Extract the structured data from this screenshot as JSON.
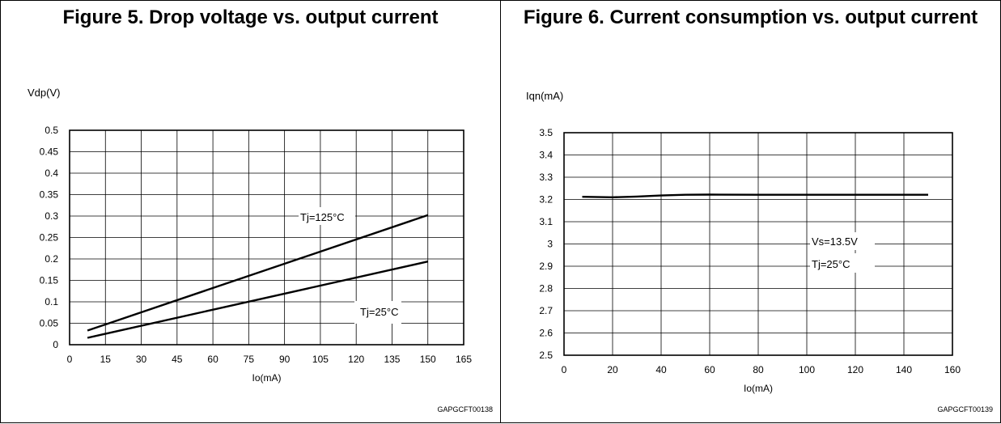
{
  "chart_data": [
    {
      "type": "line",
      "title": "Figure 5. Drop voltage vs. output current",
      "ylabel": "Vdp(V)",
      "xlabel": "Io(mA)",
      "xlim": [
        0,
        165
      ],
      "ylim": [
        0,
        0.5
      ],
      "xticks": [
        "0",
        "15",
        "30",
        "45",
        "60",
        "75",
        "90",
        "105",
        "120",
        "135",
        "150",
        "165"
      ],
      "yticks": [
        "0",
        "0.05",
        "0.1",
        "0.15",
        "0.2",
        "0.25",
        "0.3",
        "0.35",
        "0.4",
        "0.45",
        "0.5"
      ],
      "grid": true,
      "series": [
        {
          "name": "Tj=125°C",
          "x": [
            7.5,
            150
          ],
          "y": [
            0.033,
            0.302
          ]
        },
        {
          "name": "Tj=25°C",
          "x": [
            7.5,
            150
          ],
          "y": [
            0.016,
            0.194
          ]
        }
      ],
      "annotations": [
        "Tj=125°C",
        "Tj=25°C"
      ],
      "code": "GAPGCFT00138"
    },
    {
      "type": "line",
      "title": "Figure 6. Current consumption vs. output current",
      "ylabel": "Iqn(mA)",
      "xlabel": "Io(mA)",
      "xlim": [
        0,
        160
      ],
      "ylim": [
        2.5,
        3.5
      ],
      "xticks": [
        "0",
        "20",
        "40",
        "60",
        "80",
        "100",
        "120",
        "140",
        "160"
      ],
      "yticks": [
        "2.5",
        "2.6",
        "2.7",
        "2.8",
        "2.9",
        "3",
        "3.1",
        "3.2",
        "3.3",
        "3.4",
        "3.5"
      ],
      "grid": true,
      "series": [
        {
          "name": "",
          "x": [
            7.5,
            20,
            30,
            40,
            50,
            60,
            80,
            100,
            120,
            150
          ],
          "y": [
            3.212,
            3.21,
            3.213,
            3.218,
            3.221,
            3.222,
            3.221,
            3.221,
            3.221,
            3.221
          ]
        }
      ],
      "annotations": [
        "Vs=13.5V",
        "Tj=25°C"
      ],
      "code": "GAPGCFT00139"
    }
  ]
}
